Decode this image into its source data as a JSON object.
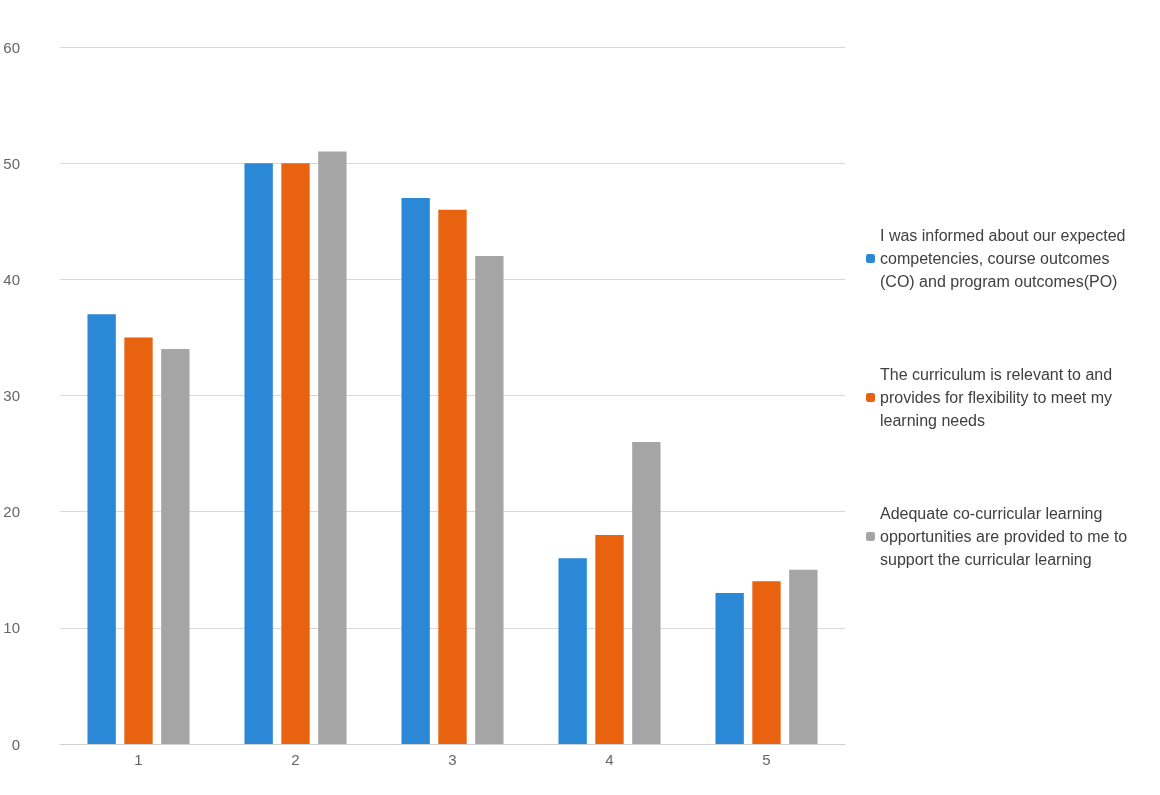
{
  "chart_data": {
    "type": "bar",
    "categories": [
      "1",
      "2",
      "3",
      "4",
      "5"
    ],
    "series": [
      {
        "name": "I was informed about our expected competencies, course outcomes (CO) and program outcomes(PO)",
        "color": "#2a88d6",
        "values": [
          37,
          50,
          47,
          16,
          13
        ]
      },
      {
        "name": "The curriculum is relevant to and provides for flexibility to meet my learning needs",
        "color": "#e8620f",
        "values": [
          35,
          50,
          46,
          18,
          14
        ]
      },
      {
        "name": "Adequate co-curricular learning opportunities are provided to me to support the curricular learning",
        "color": "#a5a5a5",
        "values": [
          34,
          51,
          42,
          26,
          15
        ]
      }
    ],
    "ylim": [
      0,
      60
    ],
    "yticks": [
      0,
      10,
      20,
      30,
      40,
      50,
      60
    ],
    "grid": "y",
    "legend": "right"
  }
}
